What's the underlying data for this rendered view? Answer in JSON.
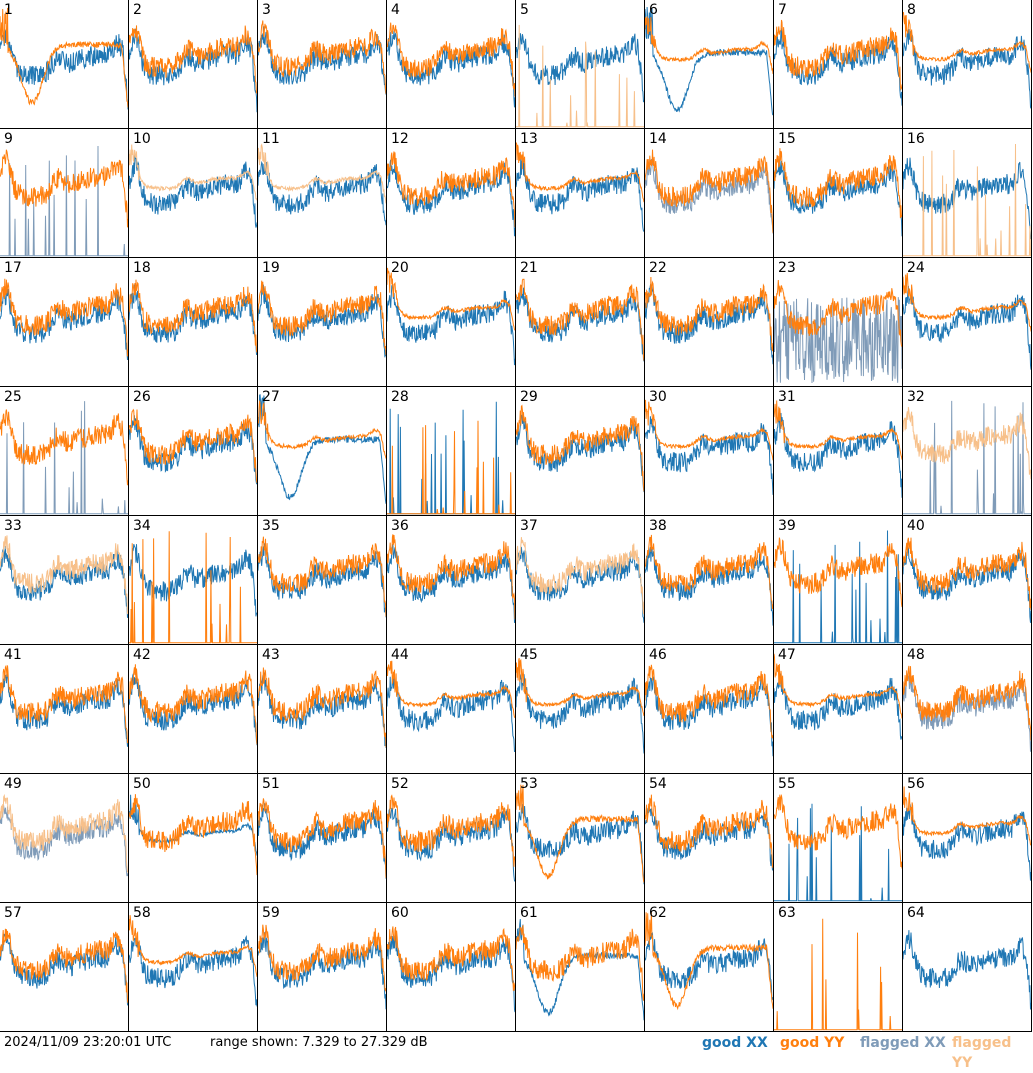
{
  "footer": {
    "timestamp": "2024/11/09 23:20:01 UTC",
    "range_text": "range shown: 7.329 to 27.329 dB"
  },
  "legend": [
    {
      "label": "good XX",
      "color": "#1f77b4"
    },
    {
      "label": "good YY",
      "color": "#ff7f0e"
    },
    {
      "label": "flagged XX",
      "color": "#7f9bb8"
    },
    {
      "label": "flagged YY",
      "color": "#f7c08a"
    }
  ],
  "chart_data": {
    "type": "line",
    "grid_cols": 8,
    "grid_rows": 8,
    "ylim": [
      7.329,
      27.329
    ],
    "y_unit": "dB",
    "panels": [
      {
        "id": "1",
        "xx": "normal",
        "yy": "dip",
        "yyf": false
      },
      {
        "id": "2",
        "xx": "normal",
        "yy": "normal"
      },
      {
        "id": "3",
        "xx": "normal",
        "yy": "normal"
      },
      {
        "id": "4",
        "xx": "normal",
        "yy": "normal"
      },
      {
        "id": "5",
        "xx": "normal",
        "yy": "spikes",
        "yyf": true
      },
      {
        "id": "6",
        "xx": "dip",
        "yy": "flat"
      },
      {
        "id": "7",
        "xx": "normal",
        "yy": "normal"
      },
      {
        "id": "8",
        "xx": "normal",
        "yy": "flat"
      },
      {
        "id": "9",
        "xx": "spikes",
        "yy": "normal",
        "xxf": true
      },
      {
        "id": "10",
        "xx": "normal",
        "yy": "flat",
        "yyf": true
      },
      {
        "id": "11",
        "xx": "normal",
        "yy": "flat",
        "yyf": true
      },
      {
        "id": "12",
        "xx": "normal",
        "yy": "normal"
      },
      {
        "id": "13",
        "xx": "normal",
        "yy": "flat"
      },
      {
        "id": "14",
        "xx": "normal",
        "yy": "normal",
        "xxf": true
      },
      {
        "id": "15",
        "xx": "normal",
        "yy": "normal"
      },
      {
        "id": "16",
        "xx": "normal",
        "yy": "spikes",
        "yyf": true
      },
      {
        "id": "17",
        "xx": "normal",
        "yy": "normal"
      },
      {
        "id": "18",
        "xx": "normal",
        "yy": "normal"
      },
      {
        "id": "19",
        "xx": "normal",
        "yy": "normal"
      },
      {
        "id": "20",
        "xx": "normal",
        "yy": "flat"
      },
      {
        "id": "21",
        "xx": "normal",
        "yy": "normal"
      },
      {
        "id": "22",
        "xx": "normal",
        "yy": "normal"
      },
      {
        "id": "23",
        "xx": "noisy",
        "yy": "normal",
        "xxf": true
      },
      {
        "id": "24",
        "xx": "normal",
        "yy": "flat"
      },
      {
        "id": "25",
        "xx": "spikes",
        "yy": "normal",
        "xxf": true
      },
      {
        "id": "26",
        "xx": "normal",
        "yy": "normal"
      },
      {
        "id": "27",
        "xx": "dip",
        "yy": "flat"
      },
      {
        "id": "28",
        "xx": "spikes",
        "yy": "spikes"
      },
      {
        "id": "29",
        "xx": "normal",
        "yy": "normal"
      },
      {
        "id": "30",
        "xx": "normal",
        "yy": "flat"
      },
      {
        "id": "31",
        "xx": "normal",
        "yy": "flat"
      },
      {
        "id": "32",
        "xx": "spikes",
        "yy": "normal",
        "xxf": true,
        "yyf": true
      },
      {
        "id": "33",
        "xx": "normal",
        "yy": "normal",
        "yyf": true
      },
      {
        "id": "34",
        "xx": "normal",
        "yy": "spikes"
      },
      {
        "id": "35",
        "xx": "normal",
        "yy": "normal"
      },
      {
        "id": "36",
        "xx": "normal",
        "yy": "normal"
      },
      {
        "id": "37",
        "xx": "normal",
        "yy": "normal",
        "yyf": true
      },
      {
        "id": "38",
        "xx": "normal",
        "yy": "normal"
      },
      {
        "id": "39",
        "xx": "spikes",
        "yy": "normal"
      },
      {
        "id": "40",
        "xx": "normal",
        "yy": "normal"
      },
      {
        "id": "41",
        "xx": "normal",
        "yy": "normal"
      },
      {
        "id": "42",
        "xx": "normal",
        "yy": "normal"
      },
      {
        "id": "43",
        "xx": "normal",
        "yy": "normal"
      },
      {
        "id": "44",
        "xx": "normal",
        "yy": "flat"
      },
      {
        "id": "45",
        "xx": "normal",
        "yy": "flat"
      },
      {
        "id": "46",
        "xx": "normal",
        "yy": "normal"
      },
      {
        "id": "47",
        "xx": "normal",
        "yy": "flat"
      },
      {
        "id": "48",
        "xx": "normal",
        "yy": "normal",
        "xxf": true
      },
      {
        "id": "49",
        "xx": "normal",
        "yy": "normal",
        "xxf": true,
        "yyf": true
      },
      {
        "id": "50",
        "xx": "flat",
        "yy": "normal"
      },
      {
        "id": "51",
        "xx": "normal",
        "yy": "normal"
      },
      {
        "id": "52",
        "xx": "normal",
        "yy": "normal"
      },
      {
        "id": "53",
        "xx": "normal",
        "yy": "dip"
      },
      {
        "id": "54",
        "xx": "normal",
        "yy": "normal"
      },
      {
        "id": "55",
        "xx": "spikes",
        "yy": "normal"
      },
      {
        "id": "56",
        "xx": "normal",
        "yy": "flat"
      },
      {
        "id": "57",
        "xx": "normal",
        "yy": "normal"
      },
      {
        "id": "58",
        "xx": "normal",
        "yy": "flat"
      },
      {
        "id": "59",
        "xx": "normal",
        "yy": "normal"
      },
      {
        "id": "60",
        "xx": "normal",
        "yy": "normal"
      },
      {
        "id": "61",
        "xx": "dip",
        "yy": "normal"
      },
      {
        "id": "62",
        "xx": "normal",
        "yy": "dip"
      },
      {
        "id": "63",
        "xx": "none",
        "yy": "spikes"
      },
      {
        "id": "64",
        "xx": "normal",
        "yy": "none"
      }
    ]
  }
}
